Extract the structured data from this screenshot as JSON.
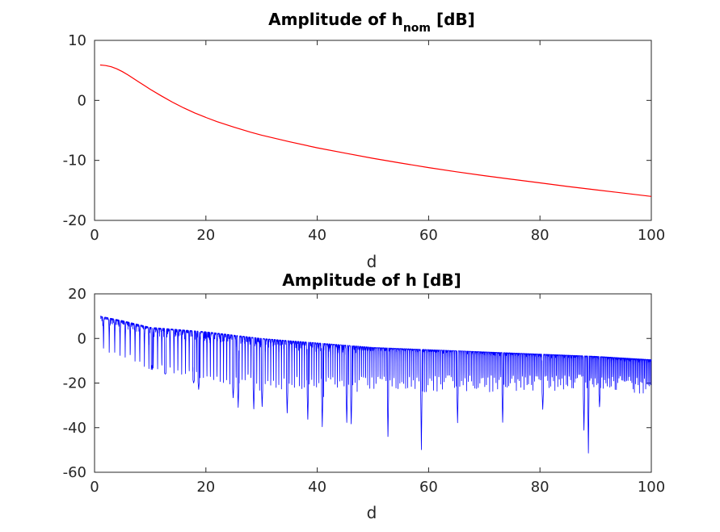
{
  "chart_data": [
    {
      "type": "line",
      "title": "Amplitude of h",
      "title_subscript": "nom",
      "title_suffix": " [dB]",
      "xlabel": "d",
      "ylabel": "",
      "xlim": [
        0,
        100
      ],
      "ylim": [
        -20,
        10
      ],
      "xticks": [
        "0",
        "20",
        "40",
        "60",
        "80",
        "100"
      ],
      "yticks": [
        "-20",
        "-10",
        "0",
        "10"
      ],
      "grid": false,
      "color": "#ff0000",
      "series": [
        {
          "x": [
            1,
            1.5,
            2,
            3,
            4,
            5,
            6,
            7,
            8,
            9,
            10,
            12,
            14,
            16,
            18,
            20,
            22,
            25,
            28,
            30,
            35,
            40,
            45,
            50,
            55,
            60,
            65,
            70,
            75,
            80,
            85,
            90,
            95,
            100
          ],
          "values": [
            5.9,
            5.85,
            5.8,
            5.6,
            5.25,
            4.8,
            4.25,
            3.65,
            3.05,
            2.45,
            1.85,
            0.75,
            -0.3,
            -1.25,
            -2.1,
            -2.85,
            -3.55,
            -4.45,
            -5.3,
            -5.8,
            -6.9,
            -7.9,
            -8.8,
            -9.65,
            -10.45,
            -11.2,
            -11.9,
            -12.55,
            -13.15,
            -13.75,
            -14.35,
            -14.9,
            -15.45,
            -16.0
          ]
        }
      ]
    },
    {
      "type": "line",
      "title": "Amplitude of h [dB]",
      "xlabel": "d",
      "ylabel": "",
      "xlim": [
        0,
        100
      ],
      "ylim": [
        -60,
        20
      ],
      "xticks": [
        "0",
        "20",
        "40",
        "60",
        "80",
        "100"
      ],
      "yticks": [
        "-60",
        "-40",
        "-20",
        "0",
        "20"
      ],
      "grid": false,
      "color": "#0000ff",
      "envelope": {
        "x": [
          1,
          5,
          10,
          20,
          30,
          40,
          50,
          60,
          70,
          80,
          90,
          100
        ],
        "upper": [
          10,
          8,
          5,
          3,
          0,
          -2,
          -4,
          -5,
          -6,
          -7,
          -8,
          -9.5
        ],
        "typical_dip": [
          -5,
          -8,
          -14,
          -20,
          -22,
          -24,
          -24,
          -24,
          -24,
          -24,
          -24,
          -26
        ]
      },
      "notable_minima": [
        {
          "x": 10.3,
          "y": -12
        },
        {
          "x": 12.7,
          "y": -16
        },
        {
          "x": 17.8,
          "y": -20
        },
        {
          "x": 18.7,
          "y": -23
        },
        {
          "x": 24.9,
          "y": -27
        },
        {
          "x": 25.8,
          "y": -31
        },
        {
          "x": 28.6,
          "y": -32
        },
        {
          "x": 30.1,
          "y": -31
        },
        {
          "x": 34.6,
          "y": -34
        },
        {
          "x": 38.3,
          "y": -37
        },
        {
          "x": 40.9,
          "y": -40
        },
        {
          "x": 45.3,
          "y": -38
        },
        {
          "x": 46.1,
          "y": -39
        },
        {
          "x": 52.7,
          "y": -45
        },
        {
          "x": 58.7,
          "y": -50
        },
        {
          "x": 65.2,
          "y": -38
        },
        {
          "x": 73.3,
          "y": -38
        },
        {
          "x": 80.5,
          "y": -32
        },
        {
          "x": 87.9,
          "y": -42
        },
        {
          "x": 88.7,
          "y": -52
        },
        {
          "x": 90.7,
          "y": -31
        }
      ]
    }
  ]
}
